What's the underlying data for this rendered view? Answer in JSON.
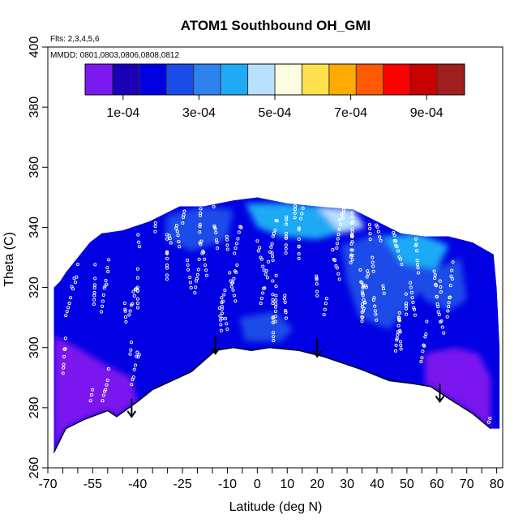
{
  "chart_data": {
    "type": "heatmap",
    "title": "ATOM1 Southbound OH_GMI",
    "subtitle_flights": "Flts: 2,3,4,5,6",
    "subtitle_dates": "MMDD: 0801,0803,0806,0808,0812",
    "xlabel": "Latitude (deg N)",
    "ylabel": "Theta (C)",
    "xlim": [
      -70,
      82
    ],
    "ylim": [
      260,
      400
    ],
    "x_tick_labels": [
      {
        "value": -70,
        "label": "-70"
      },
      {
        "value": -55,
        "label": "-55"
      },
      {
        "value": -40,
        "label": "-40"
      },
      {
        "value": -25,
        "label": "-25"
      },
      {
        "value": -10,
        "label": "-10"
      },
      {
        "value": 0,
        "label": "0"
      },
      {
        "value": 10,
        "label": "10"
      },
      {
        "value": 20,
        "label": "20"
      },
      {
        "value": 30,
        "label": "30"
      },
      {
        "value": 40,
        "label": "40"
      },
      {
        "value": 50,
        "label": "50"
      },
      {
        "value": 60,
        "label": "60"
      },
      {
        "value": 70,
        "label": "70"
      },
      {
        "value": 80,
        "label": "80"
      }
    ],
    "x_minor_ticks": [
      -65,
      -60,
      -50,
      -45,
      -35,
      -30,
      -20,
      -15,
      -5,
      5,
      15,
      25,
      35,
      45,
      55,
      65,
      75
    ],
    "y_tick_labels": [
      {
        "value": 260,
        "label": "260"
      },
      {
        "value": 280,
        "label": "280"
      },
      {
        "value": 300,
        "label": "300"
      },
      {
        "value": 320,
        "label": "320"
      },
      {
        "value": 340,
        "label": "340"
      },
      {
        "value": 360,
        "label": "360"
      },
      {
        "value": 380,
        "label": "380"
      },
      {
        "value": 400,
        "label": "400"
      }
    ],
    "colorbar": {
      "min": 0.0,
      "max": 0.001,
      "colors": [
        "#7c19ee",
        "#1c00b6",
        "#0000e2",
        "#1b4ce8",
        "#2d82f0",
        "#1eaaf5",
        "#b8e0ff",
        "#fcfce0",
        "#ffe14d",
        "#ffaa00",
        "#ff5a00",
        "#ff0000",
        "#c80000",
        "#a01e1e"
      ],
      "ticks": [
        {
          "value": 0.0001,
          "label": "1e-04"
        },
        {
          "value": 0.0003,
          "label": "3e-04"
        },
        {
          "value": 0.0005,
          "label": "5e-04"
        },
        {
          "value": 0.0007,
          "label": "7e-04"
        },
        {
          "value": 0.0009,
          "label": "9e-04"
        }
      ]
    },
    "upper_boundary": [
      [
        -68,
        320
      ],
      [
        -66,
        322
      ],
      [
        -64,
        325
      ],
      [
        -60,
        330
      ],
      [
        -56,
        335
      ],
      [
        -52,
        338
      ],
      [
        -45,
        339
      ],
      [
        -36,
        342
      ],
      [
        -26,
        347
      ],
      [
        -18,
        347
      ],
      [
        -8,
        349
      ],
      [
        0,
        350
      ],
      [
        10,
        348
      ],
      [
        20,
        347
      ],
      [
        32,
        346
      ],
      [
        40,
        342
      ],
      [
        48,
        338
      ],
      [
        56,
        337
      ],
      [
        64,
        337
      ],
      [
        72,
        335
      ],
      [
        79,
        331
      ],
      [
        80,
        320
      ],
      [
        81,
        300
      ],
      [
        81,
        273
      ]
    ],
    "lower_boundary": [
      [
        -68,
        265
      ],
      [
        -64,
        273
      ],
      [
        -58,
        276
      ],
      [
        -50,
        279
      ],
      [
        -47,
        277
      ],
      [
        -40,
        282
      ],
      [
        -35,
        286
      ],
      [
        -22,
        292
      ],
      [
        -14,
        299
      ],
      [
        -8,
        300
      ],
      [
        -2,
        299
      ],
      [
        4,
        300
      ],
      [
        14,
        299
      ],
      [
        22,
        297
      ],
      [
        34,
        293
      ],
      [
        44,
        289
      ],
      [
        52,
        288
      ],
      [
        58,
        287
      ],
      [
        64,
        283
      ],
      [
        72,
        278
      ],
      [
        78,
        273
      ]
    ],
    "field_regions": [
      {
        "name": "purple-lower-south",
        "value": 2e-05,
        "polygon": [
          [
            -68,
            265
          ],
          [
            -68,
            304
          ],
          [
            -60,
            300
          ],
          [
            -50,
            294
          ],
          [
            -42,
            290
          ],
          [
            -40,
            282
          ],
          [
            -47,
            277
          ],
          [
            -50,
            279
          ],
          [
            -58,
            276
          ],
          [
            -64,
            273
          ]
        ]
      },
      {
        "name": "purple-lower-north",
        "value": 3e-05,
        "polygon": [
          [
            56,
            287
          ],
          [
            56,
            298
          ],
          [
            66,
            300
          ],
          [
            74,
            298
          ],
          [
            78,
            290
          ],
          [
            78,
            273
          ],
          [
            72,
            278
          ],
          [
            64,
            283
          ],
          [
            58,
            287
          ]
        ]
      },
      {
        "name": "blue-upper-south",
        "value": 0.00018,
        "polygon": [
          [
            -52,
            338
          ],
          [
            -45,
            339
          ],
          [
            -36,
            342
          ],
          [
            -26,
            345
          ],
          [
            -30,
            334
          ],
          [
            -40,
            333
          ],
          [
            -48,
            332
          ]
        ]
      },
      {
        "name": "blue-mid-upper",
        "value": 0.00022,
        "polygon": [
          [
            -30,
            344
          ],
          [
            -18,
            347
          ],
          [
            -8,
            346
          ],
          [
            -10,
            336
          ],
          [
            -22,
            332
          ],
          [
            -30,
            336
          ]
        ]
      },
      {
        "name": "blue-mid-band",
        "value": 0.0002,
        "polygon": [
          [
            -10,
            330
          ],
          [
            0,
            332
          ],
          [
            6,
            325
          ],
          [
            4,
            318
          ],
          [
            -4,
            316
          ],
          [
            -10,
            322
          ]
        ]
      },
      {
        "name": "blue-low-mid",
        "value": 0.00024,
        "polygon": [
          [
            -6,
            310
          ],
          [
            6,
            312
          ],
          [
            12,
            306
          ],
          [
            8,
            302
          ],
          [
            -4,
            302
          ]
        ]
      },
      {
        "name": "cyan-top",
        "value": 0.00038,
        "polygon": [
          [
            -4,
            348
          ],
          [
            10,
            348
          ],
          [
            22,
            347
          ],
          [
            32,
            346
          ],
          [
            34,
            340
          ],
          [
            20,
            336
          ],
          [
            8,
            337
          ],
          [
            0,
            340
          ]
        ]
      },
      {
        "name": "light-band-top",
        "value": 0.00046,
        "polygon": [
          [
            20,
            347
          ],
          [
            32,
            346
          ],
          [
            36,
            340
          ],
          [
            28,
            338
          ]
        ]
      },
      {
        "name": "blue-center-right",
        "value": 0.00022,
        "polygon": [
          [
            28,
            334
          ],
          [
            40,
            338
          ],
          [
            52,
            334
          ],
          [
            54,
            318
          ],
          [
            44,
            306
          ],
          [
            34,
            310
          ],
          [
            30,
            322
          ]
        ]
      },
      {
        "name": "cyan-right-top",
        "value": 0.0004,
        "polygon": [
          [
            42,
            337
          ],
          [
            54,
            338
          ],
          [
            64,
            334
          ],
          [
            60,
            326
          ],
          [
            50,
            326
          ]
        ]
      },
      {
        "name": "blue-right-mid",
        "value": 0.00025,
        "polygon": [
          [
            48,
            328
          ],
          [
            60,
            326
          ],
          [
            68,
            330
          ],
          [
            70,
            316
          ],
          [
            64,
            312
          ],
          [
            56,
            316
          ]
        ]
      }
    ],
    "arrows": [
      {
        "x": -42,
        "y_start": 283,
        "y_end": 277
      },
      {
        "x": -14,
        "y_start": 304,
        "y_end": 298
      },
      {
        "x": 20,
        "y_start": 303,
        "y_end": 297
      },
      {
        "x": 61,
        "y_start": 288,
        "y_end": 282
      }
    ]
  }
}
